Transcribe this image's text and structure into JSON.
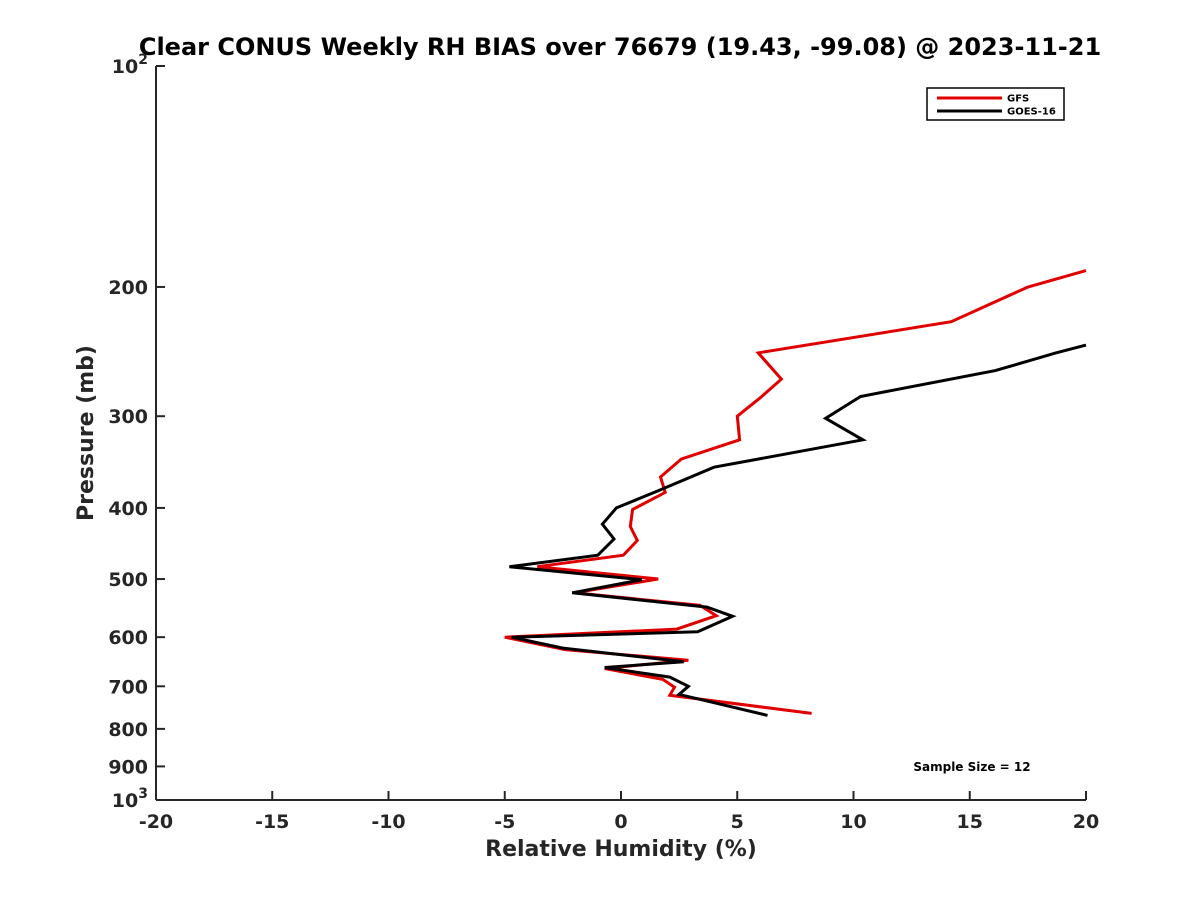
{
  "chart_data": {
    "type": "line",
    "title": "Clear CONUS Weekly RH BIAS over 76679 (19.43, -99.08) @ 2023-11-21",
    "xlabel": "Relative Humidity (%)",
    "ylabel": "Pressure (mb)",
    "xlim": [
      -20,
      20
    ],
    "ylim": [
      100,
      1000
    ],
    "yscale": "log",
    "y_reversed": true,
    "grid": false,
    "legend": "top-right",
    "x_ticks": [
      {
        "value": -20,
        "label": "-20"
      },
      {
        "value": -15,
        "label": "-15"
      },
      {
        "value": -10,
        "label": "-10"
      },
      {
        "value": -5,
        "label": "-5"
      },
      {
        "value": 0,
        "label": "0"
      },
      {
        "value": 5,
        "label": "5"
      },
      {
        "value": 10,
        "label": "10"
      },
      {
        "value": 15,
        "label": "15"
      },
      {
        "value": 20,
        "label": "20"
      }
    ],
    "y_ticks": [
      {
        "value": 100,
        "label": "10",
        "sup": "2"
      },
      {
        "value": 200,
        "label": "200",
        "sup": ""
      },
      {
        "value": 300,
        "label": "300",
        "sup": ""
      },
      {
        "value": 400,
        "label": "400",
        "sup": ""
      },
      {
        "value": 500,
        "label": "500",
        "sup": ""
      },
      {
        "value": 600,
        "label": "600",
        "sup": ""
      },
      {
        "value": 700,
        "label": "700",
        "sup": ""
      },
      {
        "value": 800,
        "label": "800",
        "sup": ""
      },
      {
        "value": 900,
        "label": "900",
        "sup": ""
      },
      {
        "value": 1000,
        "label": "10",
        "sup": "3"
      }
    ],
    "series": [
      {
        "name": "GFS",
        "color": "#e00000",
        "points": [
          [
            20,
            190
          ],
          [
            17.5,
            200
          ],
          [
            14.2,
            223
          ],
          [
            5.9,
            246
          ],
          [
            6.9,
            267
          ],
          [
            6.0,
            283
          ],
          [
            5.0,
            300
          ],
          [
            5.1,
            323
          ],
          [
            2.6,
            343
          ],
          [
            1.7,
            363
          ],
          [
            1.9,
            381
          ],
          [
            0.5,
            402
          ],
          [
            0.4,
            424
          ],
          [
            0.7,
            443
          ],
          [
            0.1,
            464
          ],
          [
            -3.6,
            481
          ],
          [
            1.6,
            500
          ],
          [
            -2.0,
            522
          ],
          [
            3.4,
            543
          ],
          [
            4.1,
            561
          ],
          [
            2.4,
            585
          ],
          [
            -5.0,
            600
          ],
          [
            -2.4,
            624
          ],
          [
            2.9,
            645
          ],
          [
            -0.7,
            662
          ],
          [
            1.8,
            685
          ],
          [
            2.3,
            702
          ],
          [
            2.1,
            720
          ],
          [
            8.2,
            762
          ]
        ]
      },
      {
        "name": "GOES-16",
        "color": "#000000",
        "points": [
          [
            20,
            240
          ],
          [
            18.7,
            246
          ],
          [
            16.1,
            260
          ],
          [
            10.3,
            282
          ],
          [
            8.8,
            302
          ],
          [
            10.4,
            323
          ],
          [
            4.0,
            352
          ],
          [
            1.6,
            379
          ],
          [
            -0.2,
            400
          ],
          [
            -0.8,
            421
          ],
          [
            -0.3,
            441
          ],
          [
            -1.0,
            464
          ],
          [
            -4.8,
            481
          ],
          [
            0.9,
            501
          ],
          [
            -2.1,
            522
          ],
          [
            3.7,
            546
          ],
          [
            4.8,
            562
          ],
          [
            3.3,
            590
          ],
          [
            -4.7,
            600
          ],
          [
            -2.5,
            621
          ],
          [
            2.7,
            648
          ],
          [
            -0.7,
            660
          ],
          [
            2.1,
            680
          ],
          [
            2.9,
            700
          ],
          [
            2.5,
            718
          ],
          [
            6.3,
            767
          ]
        ]
      }
    ],
    "annotation": "Sample Size = 12"
  }
}
